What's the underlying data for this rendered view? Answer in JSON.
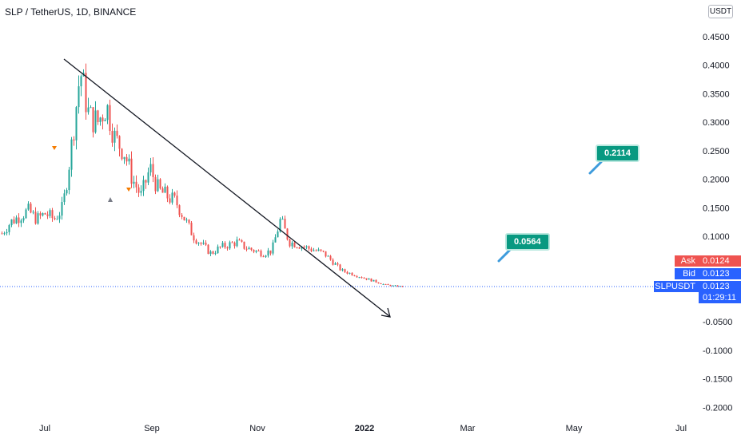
{
  "symbol_header": {
    "title": "SLP / TetherUS, 1D, BINANCE"
  },
  "currency_button": {
    "label": "USDT"
  },
  "price_axis": {
    "ticks": [
      {
        "value": 0.45,
        "label": "0.4500"
      },
      {
        "value": 0.4,
        "label": "0.4000"
      },
      {
        "value": 0.35,
        "label": "0.3500"
      },
      {
        "value": 0.3,
        "label": "0.3000"
      },
      {
        "value": 0.25,
        "label": "0.2500"
      },
      {
        "value": 0.2,
        "label": "0.2000"
      },
      {
        "value": 0.15,
        "label": "0.1500"
      },
      {
        "value": 0.1,
        "label": "0.1000"
      },
      {
        "value": -0.05,
        "label": "-0.0500"
      },
      {
        "value": -0.1,
        "label": "-0.1000"
      },
      {
        "value": -0.15,
        "label": "-0.1500"
      },
      {
        "value": -0.2,
        "label": "-0.2000"
      }
    ]
  },
  "time_axis": {
    "ticks": [
      {
        "label": "Jul",
        "bold": false
      },
      {
        "label": "Sep",
        "bold": false
      },
      {
        "label": "Nov",
        "bold": false
      },
      {
        "label": "2022",
        "bold": true
      },
      {
        "label": "Mar",
        "bold": false
      },
      {
        "label": "May",
        "bold": false
      },
      {
        "label": "Jul",
        "bold": false
      }
    ]
  },
  "quote_labels": {
    "ask_label": "Ask",
    "ask_price": "0.0124",
    "bid_label": "Bid",
    "bid_price": "0.0123",
    "symbol_label": "SLPUSDT",
    "last_price": "0.0123",
    "countdown": "01:29:11"
  },
  "callouts": [
    {
      "label": "0.2114"
    },
    {
      "label": "0.0564"
    }
  ],
  "colors": {
    "up": "#26a69a",
    "down": "#ef5350",
    "ask": "#ef5350",
    "bid": "#2962ff",
    "last": "#2962ff",
    "callout": "#089981",
    "trendline": "#131722"
  },
  "chart_data": {
    "type": "candlestick",
    "title": "SLP / TetherUS, 1D, BINANCE",
    "ylabel": "USDT",
    "ylim": [
      -0.22,
      0.5
    ],
    "last_price": 0.0123,
    "closes_weekly": [
      0.105,
      0.125,
      0.135,
      0.145,
      0.13,
      0.14,
      0.13,
      0.15,
      0.26,
      0.39,
      0.31,
      0.3,
      0.33,
      0.27,
      0.25,
      0.2,
      0.17,
      0.22,
      0.18,
      0.17,
      0.16,
      0.13,
      0.1,
      0.085,
      0.07,
      0.08,
      0.085,
      0.09,
      0.08,
      0.075,
      0.07,
      0.075,
      0.13,
      0.09,
      0.085,
      0.08,
      0.075,
      0.07,
      0.055,
      0.04,
      0.035,
      0.03,
      0.025,
      0.02,
      0.015,
      0.013,
      0.012
    ],
    "closes_weekly_range": [
      "2021-06",
      "2022-01"
    ],
    "trendline": {
      "from": {
        "date": "2021-07-15",
        "price": 0.41
      },
      "to": {
        "date": "2022-01-17",
        "price": -0.055
      },
      "style": "arrow"
    },
    "annotations": [
      {
        "text": "0.2114",
        "type": "callout"
      },
      {
        "text": "0.0564",
        "type": "callout"
      }
    ]
  }
}
